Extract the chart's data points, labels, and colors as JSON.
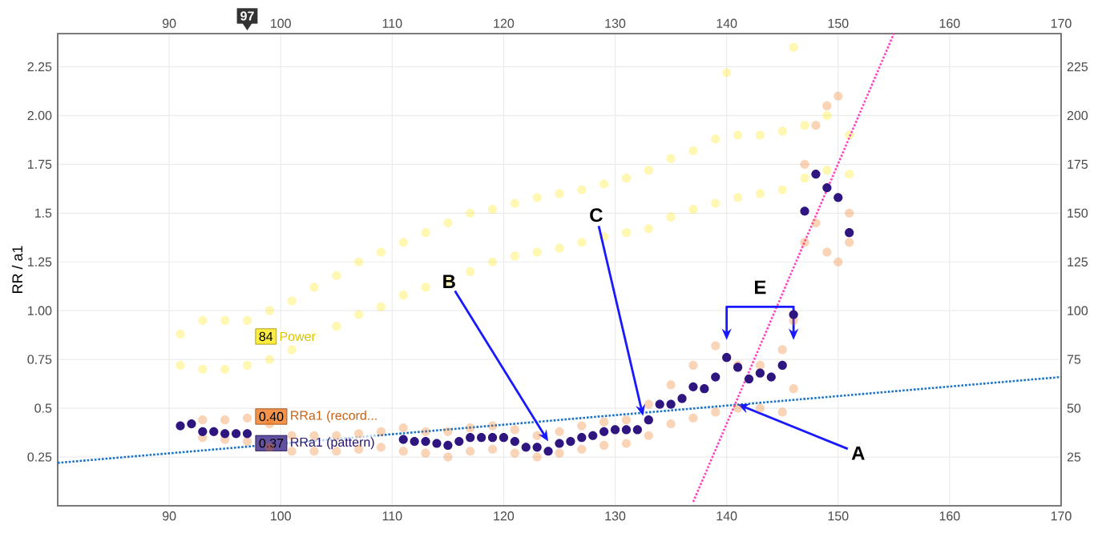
{
  "chart_data": {
    "type": "scatter",
    "ylabel": "RR / a1",
    "xlim": [
      80,
      170
    ],
    "xticks": [
      90,
      100,
      110,
      120,
      130,
      140,
      150,
      160,
      170
    ],
    "x2lim": [
      80,
      170
    ],
    "x2ticks": [
      90,
      100,
      110,
      120,
      130,
      140,
      150,
      160,
      170
    ],
    "ylim": [
      0,
      2.42
    ],
    "yticks": [
      0.25,
      0.5,
      0.75,
      {
        "value": 1.0,
        "label": "1.00"
      },
      1.25,
      1.5,
      1.75,
      {
        "value": 2.0,
        "label": "2.00"
      },
      2.25
    ],
    "y2lim": [
      0,
      242
    ],
    "y2ticks": [
      25,
      50,
      75,
      100,
      125,
      150,
      175,
      200,
      225
    ],
    "grid": true,
    "marker": "circle",
    "series": [
      {
        "name": "Power",
        "color": "#ffe600",
        "axis": "y2",
        "x": [
          91,
          91,
          93,
          93,
          95,
          95,
          97,
          97,
          99,
          99,
          101,
          101,
          103,
          103,
          105,
          105,
          107,
          107,
          109,
          109,
          111,
          111,
          113,
          113,
          115,
          115,
          117,
          117,
          119,
          119,
          121,
          121,
          123,
          123,
          125,
          125,
          127,
          127,
          129,
          129,
          131,
          131,
          133,
          133,
          135,
          135,
          137,
          137,
          139,
          139,
          141,
          141,
          143,
          143,
          145,
          145,
          147,
          147,
          149,
          149,
          151,
          151,
          140,
          146
        ],
        "values": [
          72,
          88,
          70,
          95,
          70,
          95,
          72,
          95,
          75,
          100,
          80,
          105,
          88,
          112,
          92,
          118,
          98,
          125,
          102,
          130,
          108,
          135,
          112,
          140,
          115,
          145,
          120,
          150,
          125,
          152,
          128,
          155,
          130,
          158,
          132,
          160,
          135,
          162,
          138,
          165,
          140,
          168,
          142,
          172,
          148,
          178,
          152,
          182,
          155,
          188,
          158,
          190,
          160,
          190,
          162,
          192,
          168,
          195,
          172,
          200,
          170,
          190,
          222,
          235
        ]
      },
      {
        "name": "RRa1 (record...",
        "color": "#f07010",
        "x": [
          93,
          93,
          95,
          95,
          97,
          97,
          99,
          99,
          101,
          101,
          103,
          103,
          105,
          105,
          107,
          107,
          109,
          109,
          111,
          111,
          113,
          113,
          115,
          115,
          117,
          117,
          119,
          119,
          121,
          121,
          123,
          123,
          125,
          125,
          127,
          127,
          129,
          129,
          131,
          131,
          133,
          133,
          135,
          135,
          137,
          137,
          139,
          139,
          141,
          141,
          143,
          143,
          145,
          145,
          146,
          146,
          147,
          147,
          148,
          148,
          149,
          149,
          150,
          150,
          151,
          151
        ],
        "values": [
          0.35,
          0.44,
          0.34,
          0.44,
          0.33,
          0.45,
          0.3,
          0.42,
          0.28,
          0.36,
          0.28,
          0.36,
          0.28,
          0.36,
          0.29,
          0.37,
          0.3,
          0.38,
          0.28,
          0.4,
          0.27,
          0.38,
          0.25,
          0.38,
          0.28,
          0.4,
          0.29,
          0.41,
          0.27,
          0.39,
          0.25,
          0.36,
          0.27,
          0.38,
          0.29,
          0.41,
          0.31,
          0.43,
          0.32,
          0.44,
          0.36,
          0.52,
          0.42,
          0.62,
          0.45,
          0.72,
          0.48,
          0.82,
          0.5,
          0.72,
          0.5,
          0.72,
          0.48,
          0.8,
          0.6,
          0.95,
          1.35,
          1.75,
          1.45,
          1.95,
          1.3,
          2.05,
          1.25,
          2.1,
          1.35,
          1.5
        ]
      },
      {
        "name": "RRa1 (pattern)",
        "color": "#2e1580",
        "x": [
          91,
          92,
          93,
          94,
          95,
          96,
          97,
          111,
          112,
          113,
          114,
          115,
          116,
          117,
          118,
          119,
          120,
          121,
          122,
          123,
          124,
          125,
          126,
          127,
          128,
          129,
          130,
          131,
          132,
          133,
          134,
          135,
          136,
          137,
          138,
          139,
          140,
          141,
          142,
          143,
          144,
          145,
          146,
          147,
          148,
          149,
          150,
          151
        ],
        "values": [
          0.41,
          0.42,
          0.38,
          0.38,
          0.37,
          0.37,
          0.37,
          0.34,
          0.33,
          0.33,
          0.32,
          0.31,
          0.33,
          0.35,
          0.35,
          0.35,
          0.35,
          0.33,
          0.3,
          0.3,
          0.28,
          0.32,
          0.33,
          0.35,
          0.36,
          0.38,
          0.39,
          0.39,
          0.39,
          0.44,
          0.52,
          0.52,
          0.55,
          0.61,
          0.6,
          0.66,
          0.76,
          0.71,
          0.65,
          0.68,
          0.66,
          0.72,
          0.98,
          1.51,
          1.7,
          1.63,
          1.58,
          1.4
        ]
      },
      {
        "type": "line",
        "color": "#1a73c8",
        "line_style": "dotted",
        "marker": "none",
        "x": [
          80,
          170
        ],
        "values": [
          0.22,
          0.66
        ]
      },
      {
        "type": "line",
        "color": "#ff44c4",
        "line_style": "dotted",
        "marker": "none",
        "x": [
          137,
          155
        ],
        "values": [
          0.02,
          2.42
        ]
      }
    ],
    "annotations": [
      {
        "text": "A",
        "x": 141,
        "y": 0.52
      },
      {
        "text": "B",
        "x": 124,
        "y": 0.33
      },
      {
        "text": "C",
        "x": 132.5,
        "y": 0.46
      },
      {
        "text": "E",
        "x": 143,
        "y": 0.85
      },
      "97",
      "84",
      {
        "text": "0.40",
        "x": 97,
        "y": 0.4
      },
      {
        "text": "0.37",
        "x": 97,
        "y": 0.37
      }
    ]
  }
}
